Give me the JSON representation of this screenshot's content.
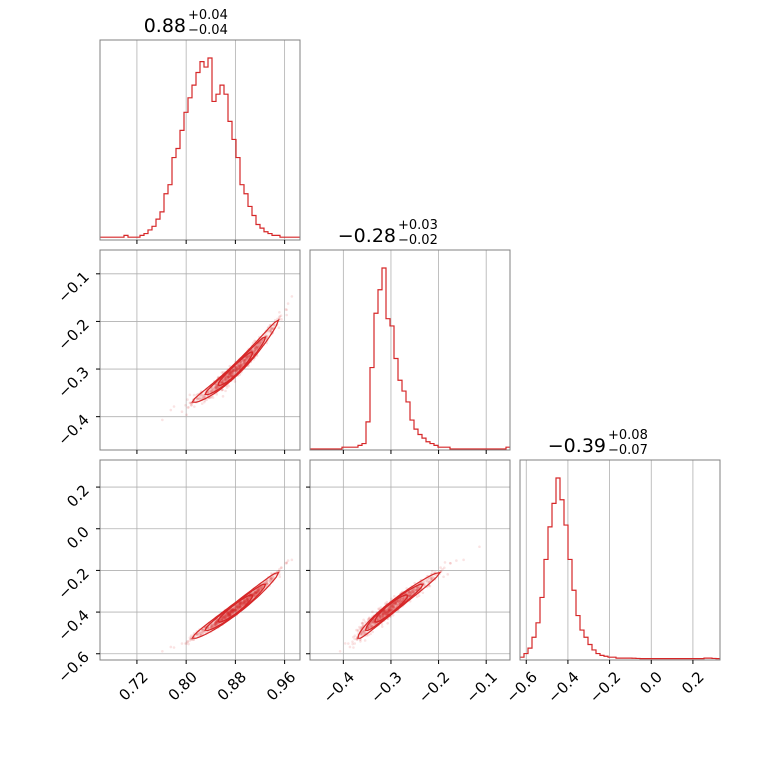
{
  "colors": {
    "accent": "#d62728",
    "grid": "#b0b0b0",
    "frame": "#808080"
  },
  "chart_data": {
    "type": "corner",
    "parameters": [
      {
        "title_value": "0.88",
        "title_plus": "+0.04",
        "title_minus": "−0.04",
        "range": [
          0.66,
          0.985
        ],
        "ticks": [
          0.72,
          0.8,
          0.88,
          0.96
        ],
        "tick_labels": [
          "0.72",
          "0.80",
          "0.88",
          "0.96"
        ]
      },
      {
        "title_value": "−0.28",
        "title_plus": "+0.03",
        "title_minus": "−0.02",
        "range": [
          -0.47,
          -0.05
        ],
        "ticks": [
          -0.4,
          -0.3,
          -0.2,
          -0.1
        ],
        "tick_labels": [
          "−0.4",
          "−0.3",
          "−0.2",
          "−0.1"
        ]
      },
      {
        "title_value": "−0.39",
        "title_plus": "+0.08",
        "title_minus": "−0.07",
        "range": [
          -0.63,
          0.33
        ],
        "ticks": [
          -0.6,
          -0.4,
          -0.2,
          0.0,
          0.2
        ],
        "tick_labels": [
          "−0.6",
          "−0.4",
          "−0.2",
          "0.0",
          "0.2"
        ]
      }
    ],
    "histograms": [
      {
        "param": 0,
        "bin_start": 0.66,
        "bin_width": 0.0065,
        "counts": [
          0.01,
          0.01,
          0.01,
          0.01,
          0.01,
          0.01,
          0.02,
          0.01,
          0.01,
          0.01,
          0.02,
          0.03,
          0.05,
          0.07,
          0.11,
          0.15,
          0.25,
          0.3,
          0.45,
          0.5,
          0.6,
          0.7,
          0.78,
          0.85,
          0.92,
          0.98,
          0.95,
          1.0,
          0.76,
          0.8,
          0.85,
          0.8,
          0.65,
          0.55,
          0.45,
          0.3,
          0.25,
          0.18,
          0.13,
          0.08,
          0.06,
          0.04,
          0.03,
          0.02,
          0.02,
          0.01,
          0.01,
          0.01,
          0.01,
          0.01
        ]
      },
      {
        "param": 1,
        "bin_start": -0.47,
        "bin_width": 0.0084,
        "counts": [
          0.0,
          0.0,
          0.0,
          0.0,
          0.0,
          0.0,
          0.0,
          0.0,
          0.01,
          0.01,
          0.01,
          0.01,
          0.02,
          0.03,
          0.15,
          0.45,
          0.75,
          0.88,
          1.0,
          0.72,
          0.68,
          0.5,
          0.38,
          0.32,
          0.26,
          0.16,
          0.11,
          0.08,
          0.06,
          0.04,
          0.03,
          0.02,
          0.01,
          0.01,
          0.01,
          0.0,
          0.0,
          0.0,
          0.0,
          0.0,
          0.0,
          0.0,
          0.0,
          0.0,
          0.0,
          0.0,
          0.0,
          0.0,
          0.0,
          0.01
        ]
      },
      {
        "param": 2,
        "bin_start": -0.63,
        "bin_width": 0.0192,
        "counts": [
          0.01,
          0.03,
          0.06,
          0.12,
          0.2,
          0.34,
          0.55,
          0.73,
          0.86,
          1.0,
          0.88,
          0.74,
          0.55,
          0.38,
          0.24,
          0.16,
          0.12,
          0.08,
          0.05,
          0.03,
          0.02,
          0.015,
          0.01,
          0.01,
          0.005,
          0.005,
          0.005,
          0.005,
          0.004,
          0.003,
          0.002,
          0.002,
          0.002,
          0.002,
          0.002,
          0.002,
          0.002,
          0.002,
          0.002,
          0.002,
          0.002,
          0.002,
          0.002,
          0.002,
          0.002,
          0.002,
          0.005,
          0.005,
          0.003,
          0.002
        ]
      }
    ],
    "scatter_params": {
      "p0_center": 0.88,
      "p0_sigma": 0.035,
      "p1_model": [
        -0.302,
        1.23,
        3.8
      ],
      "p2_model": [
        -0.385,
        2.25,
        3.5
      ],
      "noise": [
        0.008,
        0.01
      ]
    }
  }
}
